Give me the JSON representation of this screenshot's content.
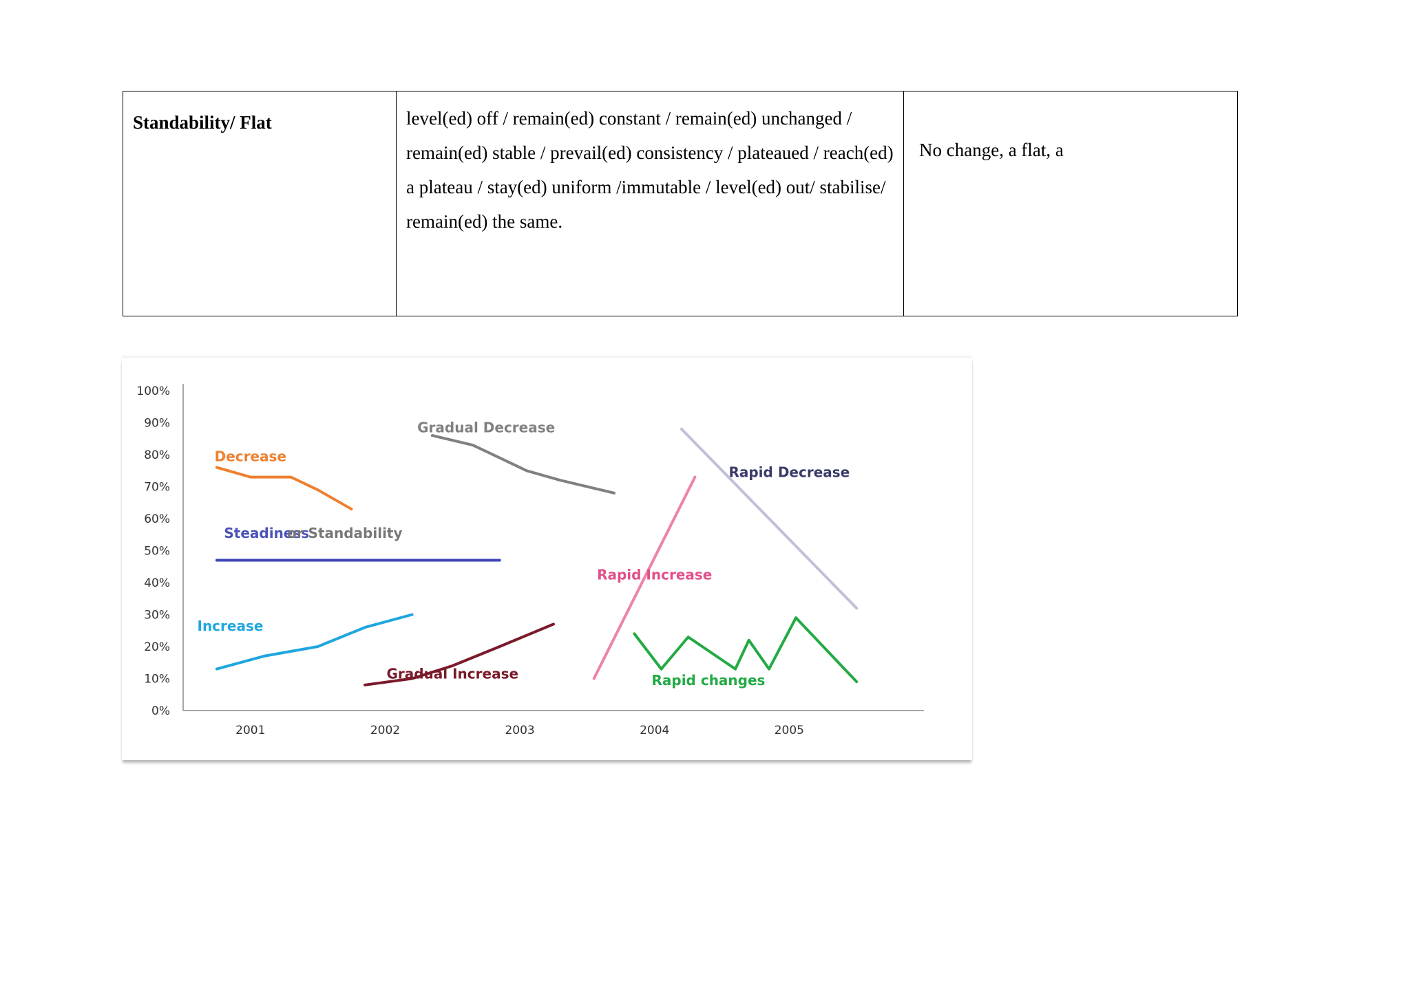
{
  "table": {
    "row": {
      "term": "Standability/ Flat",
      "verbs": "level(ed) off / remain(ed) constant / remain(ed) unchanged / remain(ed) stable / prevail(ed) consistency / plateaued / reach(ed) a plateau / stay(ed) uniform /immutable / level(ed) out/ stabilise/ remain(ed) the same.",
      "nouns": "No change, a flat, a"
    }
  },
  "chart_data": {
    "type": "line",
    "title": "",
    "xlabel": "",
    "ylabel": "",
    "categories": [
      "2001",
      "2002",
      "2003",
      "2004",
      "2005"
    ],
    "y_ticks": [
      "0%",
      "10%",
      "20%",
      "30%",
      "40%",
      "50%",
      "60%",
      "70%",
      "80%",
      "90%",
      "100%"
    ],
    "ylim": [
      0,
      100
    ],
    "xlim": [
      2000.5,
      2006.0
    ],
    "grid": false,
    "legend": "none",
    "series": [
      {
        "name": "Decrease",
        "color": "#ee8030",
        "x": [
          2000.75,
          2001.0,
          2001.1,
          2001.3,
          2001.5,
          2001.75
        ],
        "y": [
          76,
          73,
          73,
          73,
          69,
          63
        ]
      },
      {
        "name": "Steadiness",
        "color": "#3d44b8",
        "x": [
          2000.75,
          2002.85
        ],
        "y": [
          47,
          47
        ]
      },
      {
        "name": "Gradual Decrease",
        "color": "#808080",
        "x": [
          2002.35,
          2002.65,
          2002.85,
          2003.05,
          2003.3,
          2003.7
        ],
        "y": [
          86,
          83,
          79,
          75,
          72,
          68
        ]
      },
      {
        "name": "Rapid Decrease",
        "color": "#c0c0d8",
        "x": [
          2004.2,
          2005.5
        ],
        "y": [
          88,
          32
        ]
      },
      {
        "name": "Rapid Increase",
        "color": "#ee82a8",
        "x": [
          2003.55,
          2004.3
        ],
        "y": [
          10,
          73
        ]
      },
      {
        "name": "Increase",
        "color": "#1fa6de",
        "x": [
          2000.75,
          2001.1,
          2001.5,
          2001.85,
          2002.2
        ],
        "y": [
          13,
          17,
          20,
          26,
          30
        ]
      },
      {
        "name": "Gradual Increase",
        "color": "#7a1a2a",
        "x": [
          2001.85,
          2002.2,
          2002.35,
          2002.5,
          2002.85,
          2003.25
        ],
        "y": [
          8,
          10,
          12,
          14,
          20,
          27
        ]
      },
      {
        "name": "Rapid changes",
        "color": "#22aa44",
        "x": [
          2003.85,
          2004.05,
          2004.25,
          2004.6,
          2004.7,
          2004.85,
          2005.05,
          2005.5
        ],
        "y": [
          24,
          13,
          23,
          13,
          22,
          13,
          29,
          9
        ]
      }
    ],
    "annotations": [
      {
        "text": "Decrease",
        "color": "#ee8030",
        "x": 2001.0,
        "y": 78
      },
      {
        "text": "Gradual Decrease",
        "color": "#808080",
        "x": 2002.75,
        "y": 87
      },
      {
        "text": "Rapid Decrease",
        "color": "#3a3a6a",
        "x": 2005.0,
        "y": 73
      },
      {
        "text": "Steadiness",
        "color": "#4a52b8",
        "x": 2001.12,
        "y": 54
      },
      {
        "text": "or Standability",
        "color": "#777777",
        "x": 2001.7,
        "y": 54
      },
      {
        "text": "Rapid Increase",
        "color": "#e0508a",
        "x": 2004.0,
        "y": 41
      },
      {
        "text": "Increase",
        "color": "#1fa6de",
        "x": 2000.85,
        "y": 25
      },
      {
        "text": "Gradual Increase",
        "color": "#7a1a2a",
        "x": 2002.5,
        "y": 10
      },
      {
        "text": "Rapid changes",
        "color": "#22aa44",
        "x": 2004.4,
        "y": 8
      }
    ]
  }
}
